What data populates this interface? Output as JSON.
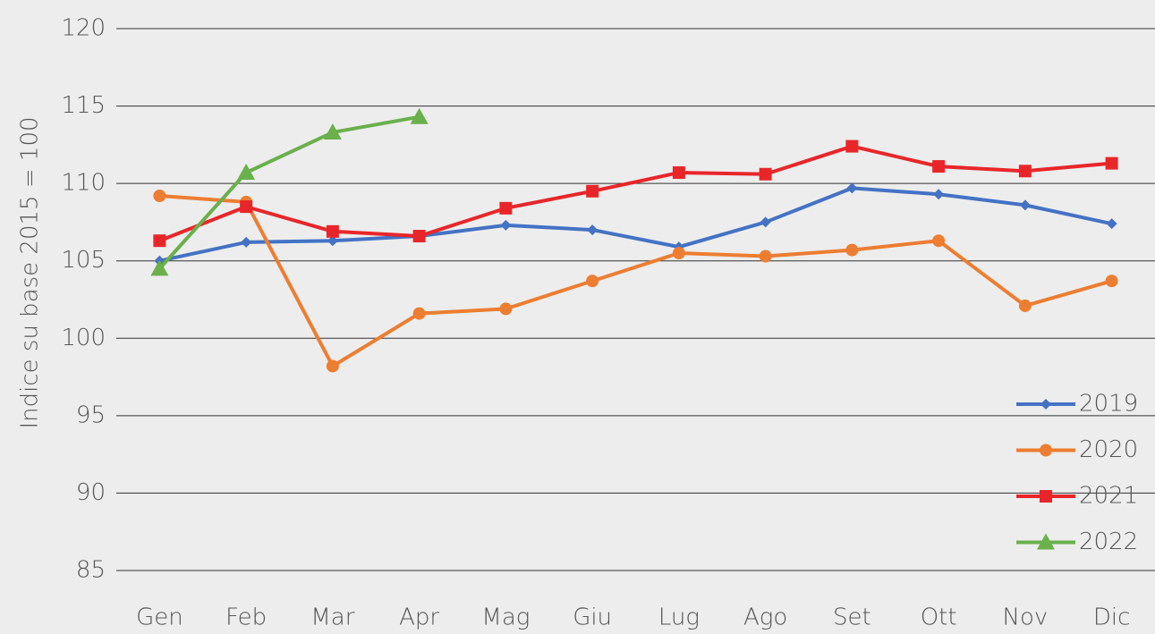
{
  "chart_data": {
    "type": "line",
    "y_label": "Indice su base 2015 = 100",
    "categories": [
      "Gen",
      "Feb",
      "Mar",
      "Apr",
      "Mag",
      "Giu",
      "Lug",
      "Ago",
      "Set",
      "Ott",
      "Nov",
      "Dic"
    ],
    "series": [
      {
        "name": "2019",
        "color": "#4472c4",
        "marker": "diamond",
        "values": [
          105.0,
          106.2,
          106.3,
          106.6,
          107.3,
          107.0,
          105.9,
          107.5,
          109.7,
          109.3,
          108.6,
          107.4
        ]
      },
      {
        "name": "2020",
        "color": "#ed7d31",
        "marker": "circle",
        "values": [
          109.2,
          108.8,
          98.2,
          101.6,
          101.9,
          103.7,
          105.5,
          105.3,
          105.7,
          106.3,
          102.1,
          103.7
        ]
      },
      {
        "name": "2021",
        "color": "#e8262a",
        "marker": "square",
        "values": [
          106.3,
          108.5,
          106.9,
          106.6,
          108.4,
          109.5,
          110.7,
          110.6,
          112.4,
          111.1,
          110.8,
          111.3
        ]
      },
      {
        "name": "2022",
        "color": "#6ab04c",
        "marker": "triangle",
        "values": [
          104.5,
          110.7,
          113.3,
          114.3,
          null,
          null,
          null,
          null,
          null,
          null,
          null,
          null
        ]
      }
    ],
    "ylim": [
      85,
      120
    ],
    "yticks": [
      85,
      90,
      95,
      100,
      105,
      110,
      115,
      120
    ],
    "grid": true,
    "legend": "lower right"
  }
}
